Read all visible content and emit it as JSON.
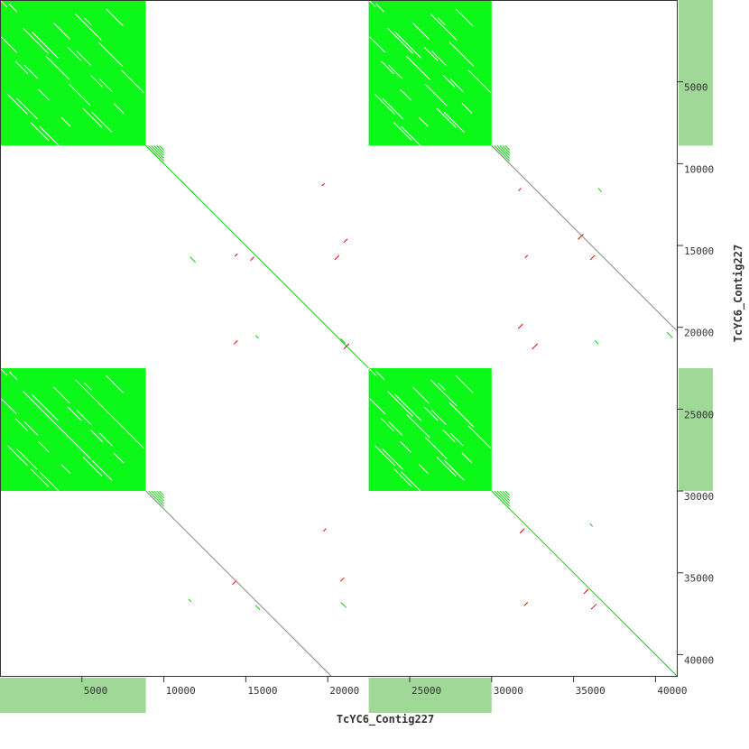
{
  "chart_data": {
    "type": "scatter",
    "subtype": "dot-plot",
    "xlabel": "TcYC6_Contig227",
    "ylabel": "TcYC6_Contig227",
    "xlim": [
      0,
      41300
    ],
    "ylim": [
      0,
      41300
    ],
    "y_inverted": true,
    "x_ticks": [
      5000,
      10000,
      15000,
      20000,
      25000,
      30000,
      35000,
      40000
    ],
    "y_ticks": [
      5000,
      10000,
      15000,
      20000,
      25000,
      30000,
      35000,
      40000
    ],
    "x_tick_labels": [
      "5000",
      "10000",
      "15000",
      "20000",
      "25000",
      "30000",
      "35000",
      "40000"
    ],
    "y_tick_labels": [
      "5000",
      "10000",
      "15000",
      "20000",
      "25000",
      "30000",
      "35000",
      "40000"
    ],
    "dense_repeat_blocks": [
      {
        "x": [
          0,
          8900
        ],
        "y": [
          0,
          8900
        ]
      },
      {
        "x": [
          22500,
          30000
        ],
        "y": [
          0,
          8900
        ]
      },
      {
        "x": [
          0,
          8900
        ],
        "y": [
          22500,
          30000
        ]
      },
      {
        "x": [
          22500,
          30000
        ],
        "y": [
          22500,
          30000
        ]
      }
    ],
    "coverage_ranges": [
      [
        0,
        8900
      ],
      [
        22500,
        30000
      ]
    ],
    "diagonal_segments": [
      {
        "x": [
          8900,
          22500
        ],
        "y": [
          8900,
          22500
        ],
        "color": "green"
      },
      {
        "x": [
          30000,
          41300
        ],
        "y": [
          8900,
          20200
        ],
        "color": "gray"
      },
      {
        "x": [
          8900,
          20200
        ],
        "y": [
          30000,
          41300
        ],
        "color": "gray"
      },
      {
        "x": [
          30000,
          41300
        ],
        "y": [
          30000,
          41300
        ],
        "color": "green"
      }
    ],
    "scattered_hits": [
      {
        "x": 14500,
        "y": 15500,
        "color": "red"
      },
      {
        "x": 15500,
        "y": 15700,
        "color": "red"
      },
      {
        "x": 11000,
        "y": 11000,
        "color": "green"
      },
      {
        "x": 11600,
        "y": 11600,
        "color": "green"
      },
      {
        "x": 19800,
        "y": 11200,
        "color": "red"
      },
      {
        "x": 21200,
        "y": 14600,
        "color": "red"
      },
      {
        "x": 20700,
        "y": 15600,
        "color": "red"
      },
      {
        "x": 11600,
        "y": 15700,
        "color": "green"
      },
      {
        "x": 15600,
        "y": 20500,
        "color": "green"
      },
      {
        "x": 14500,
        "y": 20800,
        "color": "red"
      },
      {
        "x": 20800,
        "y": 20700,
        "color": "green"
      },
      {
        "x": 21300,
        "y": 21000,
        "color": "red"
      },
      {
        "x": 31800,
        "y": 11500,
        "color": "red"
      },
      {
        "x": 36500,
        "y": 11500,
        "color": "green"
      },
      {
        "x": 36300,
        "y": 15600,
        "color": "red"
      },
      {
        "x": 35600,
        "y": 14300,
        "color": "red"
      },
      {
        "x": 32200,
        "y": 15600,
        "color": "red"
      },
      {
        "x": 36300,
        "y": 20800,
        "color": "green"
      },
      {
        "x": 31900,
        "y": 19800,
        "color": "red"
      },
      {
        "x": 32800,
        "y": 21000,
        "color": "red"
      },
      {
        "x": 11500,
        "y": 36600,
        "color": "green"
      },
      {
        "x": 14400,
        "y": 35500,
        "color": "red"
      },
      {
        "x": 15600,
        "y": 37000,
        "color": "green"
      },
      {
        "x": 20800,
        "y": 36800,
        "color": "green"
      },
      {
        "x": 19900,
        "y": 32300,
        "color": "red"
      },
      {
        "x": 21000,
        "y": 35300,
        "color": "red"
      },
      {
        "x": 32000,
        "y": 32300,
        "color": "red"
      },
      {
        "x": 36400,
        "y": 36900,
        "color": "red"
      },
      {
        "x": 36000,
        "y": 32000,
        "color": "green"
      },
      {
        "x": 32200,
        "y": 36800,
        "color": "red"
      },
      {
        "x": 35900,
        "y": 36000,
        "color": "red"
      },
      {
        "x": 40700,
        "y": 20300,
        "color": "green"
      }
    ],
    "colors": {
      "block": "#0cf818",
      "coverage": "#a0d898",
      "forward": "#10d010",
      "reverse": "#ff0000",
      "weak": "#888888"
    }
  }
}
